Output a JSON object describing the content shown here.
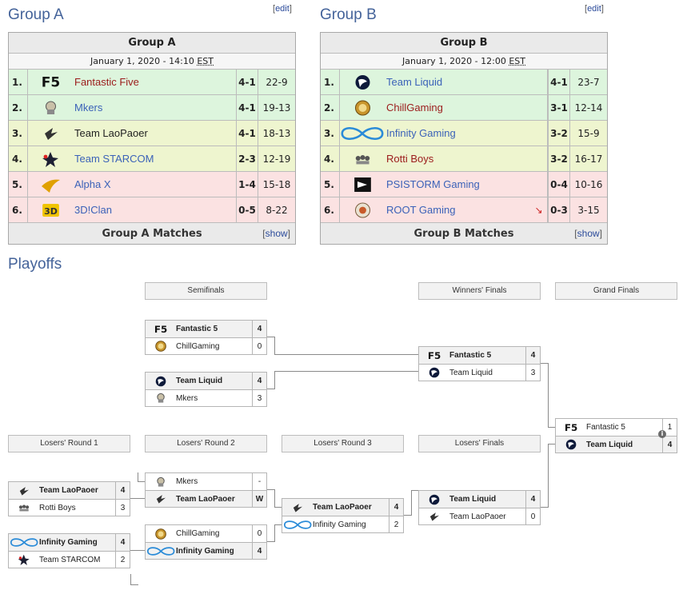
{
  "groups": [
    {
      "section_title": "Group A",
      "edit": "edit",
      "table_title": "Group A",
      "date": "January 1, 2020 - 14:10",
      "tz": "EST",
      "footer": "Group A Matches",
      "show": "show",
      "rows": [
        {
          "rank": "1.",
          "team": "Fantastic Five",
          "wl": "4-1",
          "games": "22-9",
          "status": "green",
          "logo": "f5-logo"
        },
        {
          "rank": "2.",
          "team": "Mkers",
          "wl": "4-1",
          "games": "19-13",
          "status": "green",
          "logo": "mkers-logo"
        },
        {
          "rank": "3.",
          "team": "Team LaoPaoer",
          "wl": "4-1",
          "games": "18-13",
          "status": "yellow",
          "logo": "laopaoer-logo"
        },
        {
          "rank": "4.",
          "team": "Team STARCOM",
          "wl": "2-3",
          "games": "12-19",
          "status": "yellow",
          "logo": "starcom-logo"
        },
        {
          "rank": "5.",
          "team": "Alpha X",
          "wl": "1-4",
          "games": "15-18",
          "status": "red",
          "logo": "alphax-logo"
        },
        {
          "rank": "6.",
          "team": "3D!Clan",
          "wl": "0-5",
          "games": "8-22",
          "status": "red",
          "logo": "3dclan-logo"
        }
      ]
    },
    {
      "section_title": "Group B",
      "edit": "edit",
      "table_title": "Group B",
      "date": "January 1, 2020 - 12:00",
      "tz": "EST",
      "footer": "Group B Matches",
      "show": "show",
      "rows": [
        {
          "rank": "1.",
          "team": "Team Liquid",
          "wl": "4-1",
          "games": "23-7",
          "status": "green",
          "logo": "liquid-logo"
        },
        {
          "rank": "2.",
          "team": "ChillGaming",
          "wl": "3-1",
          "games": "12-14",
          "status": "green",
          "logo": "chill-logo"
        },
        {
          "rank": "3.",
          "team": "Infinity Gaming",
          "wl": "3-2",
          "games": "15-9",
          "status": "yellow",
          "logo": "infinity-logo"
        },
        {
          "rank": "4.",
          "team": "Rotti Boys",
          "wl": "3-2",
          "games": "16-17",
          "status": "yellow",
          "logo": "rotti-logo"
        },
        {
          "rank": "5.",
          "team": "PSISTORM Gaming",
          "wl": "0-4",
          "games": "10-16",
          "status": "red",
          "logo": "psistorm-logo"
        },
        {
          "rank": "6.",
          "team": "ROOT Gaming",
          "wl": "0-3",
          "games": "3-15",
          "status": "red",
          "logo": "root-logo",
          "down": true
        }
      ]
    }
  ],
  "playoffs": {
    "title": "Playoffs",
    "rounds": {
      "semifinals": "Semifinals",
      "winners_finals": "Winners' Finals",
      "grand_finals": "Grand Finals",
      "losers_r1": "Losers' Round 1",
      "losers_r2": "Losers' Round 2",
      "losers_r3": "Losers' Round 3",
      "losers_finals": "Losers' Finals"
    },
    "matches": {
      "sf1": [
        {
          "team": "Fantastic 5",
          "score": "4",
          "win": true,
          "logo": "f5-logo"
        },
        {
          "team": "ChillGaming",
          "score": "0",
          "win": false,
          "logo": "chill-logo"
        }
      ],
      "sf2": [
        {
          "team": "Team Liquid",
          "score": "4",
          "win": true,
          "logo": "liquid-logo"
        },
        {
          "team": "Mkers",
          "score": "3",
          "win": false,
          "logo": "mkers-logo"
        }
      ],
      "wf": [
        {
          "team": "Fantastic 5",
          "score": "4",
          "win": true,
          "logo": "f5-logo"
        },
        {
          "team": "Team Liquid",
          "score": "3",
          "win": false,
          "logo": "liquid-logo"
        }
      ],
      "gf": [
        {
          "team": "Fantastic 5",
          "score": "1",
          "win": false,
          "logo": "f5-logo"
        },
        {
          "team": "Team Liquid",
          "score": "4",
          "win": true,
          "logo": "liquid-logo"
        }
      ],
      "lr1a": [
        {
          "team": "Team LaoPaoer",
          "score": "4",
          "win": true,
          "logo": "laopaoer-logo"
        },
        {
          "team": "Rotti Boys",
          "score": "3",
          "win": false,
          "logo": "rotti-logo"
        }
      ],
      "lr1b": [
        {
          "team": "Infinity Gaming",
          "score": "4",
          "win": true,
          "logo": "infinity-logo"
        },
        {
          "team": "Team STARCOM",
          "score": "2",
          "win": false,
          "logo": "starcom-logo"
        }
      ],
      "lr2a": [
        {
          "team": "Mkers",
          "score": "-",
          "win": false,
          "logo": "mkers-logo"
        },
        {
          "team": "Team LaoPaoer",
          "score": "W",
          "win": true,
          "logo": "laopaoer-logo"
        }
      ],
      "lr2b": [
        {
          "team": "ChillGaming",
          "score": "0",
          "win": false,
          "logo": "chill-logo"
        },
        {
          "team": "Infinity Gaming",
          "score": "4",
          "win": true,
          "logo": "infinity-logo"
        }
      ],
      "lr3": [
        {
          "team": "Team LaoPaoer",
          "score": "4",
          "win": true,
          "logo": "laopaoer-logo"
        },
        {
          "team": "Infinity Gaming",
          "score": "2",
          "win": false,
          "logo": "infinity-logo"
        }
      ],
      "lf": [
        {
          "team": "Team Liquid",
          "score": "4",
          "win": true,
          "logo": "liquid-logo"
        },
        {
          "team": "Team LaoPaoer",
          "score": "0",
          "win": false,
          "logo": "laopaoer-logo"
        }
      ]
    }
  },
  "colors": {
    "green": "#ddf5dd",
    "yellow": "#eef5cf",
    "red": "#fbe2e2",
    "link": "#3b62b8",
    "redlink": "#9b1b1b",
    "title": "#44639a"
  }
}
